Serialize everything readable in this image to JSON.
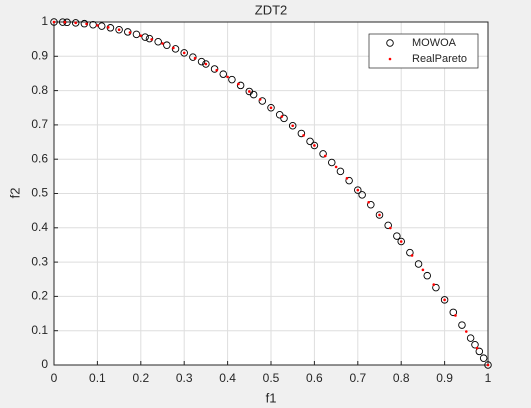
{
  "chart_data": {
    "type": "scatter",
    "title": "ZDT2",
    "x_label": "f1",
    "y_label": "f2",
    "xlim": [
      0,
      1
    ],
    "ylim": [
      0,
      1
    ],
    "xticks": [
      0,
      0.1,
      0.2,
      0.3,
      0.4,
      0.5,
      0.6,
      0.7,
      0.8,
      0.9,
      1
    ],
    "yticks": [
      0,
      0.1,
      0.2,
      0.3,
      0.4,
      0.5,
      0.6,
      0.7,
      0.8,
      0.9,
      1
    ],
    "grid": true,
    "legend_location": "northeast",
    "series": [
      {
        "name": "MOWOA",
        "color": "#000000",
        "marker": "circle",
        "x": [
          0,
          0.02,
          0.03,
          0.05,
          0.07,
          0.09,
          0.11,
          0.13,
          0.15,
          0.17,
          0.19,
          0.21,
          0.22,
          0.24,
          0.26,
          0.28,
          0.3,
          0.32,
          0.34,
          0.35,
          0.37,
          0.39,
          0.41,
          0.43,
          0.45,
          0.46,
          0.48,
          0.5,
          0.52,
          0.53,
          0.55,
          0.57,
          0.59,
          0.6,
          0.62,
          0.64,
          0.66,
          0.68,
          0.7,
          0.71,
          0.73,
          0.75,
          0.77,
          0.79,
          0.8,
          0.82,
          0.84,
          0.86,
          0.88,
          0.9,
          0.92,
          0.94,
          0.96,
          0.97,
          0.98,
          0.99,
          1
        ],
        "y": [
          1,
          0.9996,
          0.9991,
          0.9975,
          0.9951,
          0.9919,
          0.9879,
          0.9831,
          0.9775,
          0.9711,
          0.9639,
          0.9559,
          0.9516,
          0.9424,
          0.9324,
          0.9216,
          0.91,
          0.8976,
          0.8844,
          0.8775,
          0.8631,
          0.8479,
          0.8319,
          0.8151,
          0.7975,
          0.7884,
          0.7696,
          0.75,
          0.7296,
          0.7191,
          0.6975,
          0.6751,
          0.6519,
          0.64,
          0.6156,
          0.5904,
          0.5644,
          0.5376,
          0.51,
          0.4959,
          0.4671,
          0.4375,
          0.4071,
          0.3759,
          0.36,
          0.3276,
          0.2944,
          0.2604,
          0.2256,
          0.19,
          0.1536,
          0.1164,
          0.0784,
          0.0591,
          0.0396,
          0.0199,
          0
        ]
      },
      {
        "name": "RealPareto",
        "color": "#ff0000",
        "marker": "dot",
        "x": [
          0,
          0.025,
          0.05,
          0.075,
          0.1,
          0.125,
          0.15,
          0.175,
          0.2,
          0.225,
          0.25,
          0.275,
          0.3,
          0.325,
          0.35,
          0.375,
          0.4,
          0.425,
          0.45,
          0.475,
          0.5,
          0.525,
          0.55,
          0.575,
          0.6,
          0.625,
          0.65,
          0.675,
          0.7,
          0.725,
          0.75,
          0.775,
          0.8,
          0.825,
          0.85,
          0.875,
          0.9,
          0.925,
          0.95,
          0.975,
          1
        ],
        "y": [
          1,
          0.999375,
          0.9975,
          0.994375,
          0.99,
          0.984375,
          0.9775,
          0.969375,
          0.96,
          0.949375,
          0.9375,
          0.924375,
          0.91,
          0.894375,
          0.8775,
          0.859375,
          0.84,
          0.819375,
          0.7975,
          0.774375,
          0.75,
          0.724375,
          0.6975,
          0.669375,
          0.64,
          0.609375,
          0.5775,
          0.544375,
          0.51,
          0.474375,
          0.4375,
          0.399375,
          0.36,
          0.319375,
          0.2775,
          0.234375,
          0.19,
          0.144375,
          0.0975,
          0.049375,
          0
        ]
      }
    ]
  }
}
